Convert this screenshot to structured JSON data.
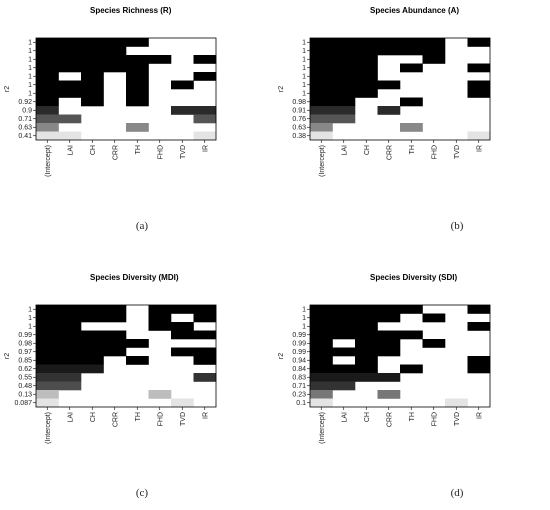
{
  "chart_data": [
    {
      "type": "heatmap",
      "title": "Species Richness (R)",
      "ylabel": "r2",
      "caption": "(a)",
      "columns": [
        "(Intercept)",
        "LAI",
        "CH",
        "CRR",
        "TH",
        "FHD",
        "TVD",
        "IR"
      ],
      "rows": [
        "1",
        "1",
        "1",
        "1",
        "1",
        "1",
        "1",
        "0.92",
        "0.9",
        "0.71",
        "0.63",
        "0.41"
      ],
      "row_shades": [
        "#000000",
        "#000000",
        "#000000",
        "#000000",
        "#000000",
        "#000000",
        "#000000",
        "#000000",
        "#2a2a2a",
        "#555555",
        "#888888",
        "#e4e4e4"
      ],
      "grid": [
        [
          1,
          1,
          1,
          1,
          1,
          0,
          0,
          0
        ],
        [
          1,
          1,
          1,
          1,
          0,
          0,
          0,
          0
        ],
        [
          1,
          1,
          1,
          1,
          1,
          1,
          0,
          1
        ],
        [
          1,
          1,
          1,
          1,
          1,
          0,
          0,
          0
        ],
        [
          1,
          0,
          1,
          0,
          1,
          0,
          0,
          1
        ],
        [
          1,
          1,
          1,
          0,
          1,
          0,
          1,
          0
        ],
        [
          1,
          1,
          1,
          0,
          1,
          0,
          0,
          0
        ],
        [
          1,
          0,
          1,
          0,
          1,
          0,
          0,
          0
        ],
        [
          1,
          0,
          0,
          0,
          0,
          0,
          1,
          1
        ],
        [
          1,
          1,
          0,
          0,
          0,
          0,
          0,
          1
        ],
        [
          1,
          0,
          0,
          0,
          1,
          0,
          0,
          0
        ],
        [
          1,
          1,
          0,
          0,
          0,
          0,
          0,
          1
        ]
      ]
    },
    {
      "type": "heatmap",
      "title": "Species Abundance (A)",
      "ylabel": "r2",
      "caption": "(b)",
      "columns": [
        "(Intercept)",
        "LAI",
        "CH",
        "CRR",
        "TH",
        "FHD",
        "TVD",
        "IR"
      ],
      "rows": [
        "1",
        "1",
        "1",
        "1",
        "1",
        "1",
        "1",
        "0.98",
        "0.91",
        "0.76",
        "0.63",
        "0.38"
      ],
      "row_shades": [
        "#000000",
        "#000000",
        "#000000",
        "#000000",
        "#000000",
        "#000000",
        "#000000",
        "#000000",
        "#2a2a2a",
        "#555555",
        "#888888",
        "#e4e4e4"
      ],
      "grid": [
        [
          1,
          1,
          1,
          1,
          1,
          1,
          0,
          1
        ],
        [
          1,
          1,
          1,
          1,
          1,
          1,
          0,
          0
        ],
        [
          1,
          1,
          1,
          0,
          0,
          1,
          0,
          0
        ],
        [
          1,
          1,
          1,
          0,
          1,
          0,
          0,
          1
        ],
        [
          1,
          1,
          1,
          0,
          0,
          0,
          0,
          0
        ],
        [
          1,
          1,
          1,
          1,
          0,
          0,
          0,
          1
        ],
        [
          1,
          1,
          1,
          0,
          0,
          0,
          0,
          1
        ],
        [
          1,
          1,
          0,
          0,
          1,
          0,
          0,
          0
        ],
        [
          1,
          1,
          0,
          1,
          0,
          0,
          0,
          0
        ],
        [
          1,
          1,
          0,
          0,
          0,
          0,
          0,
          0
        ],
        [
          1,
          0,
          0,
          0,
          1,
          0,
          0,
          0
        ],
        [
          1,
          0,
          0,
          0,
          0,
          0,
          0,
          1
        ]
      ]
    },
    {
      "type": "heatmap",
      "title": "Species Diversity (MDI)",
      "ylabel": "r2",
      "caption": "(c)",
      "columns": [
        "(Intercept)",
        "LAI",
        "CH",
        "CRR",
        "TH",
        "FHD",
        "TVD",
        "IR"
      ],
      "rows": [
        "1",
        "1",
        "1",
        "0.99",
        "0.98",
        "0.97",
        "0.85",
        "0.62",
        "0.55",
        "0.48",
        "0.13",
        "0.087"
      ],
      "row_shades": [
        "#000000",
        "#000000",
        "#000000",
        "#000000",
        "#000000",
        "#000000",
        "#000000",
        "#1a1a1a",
        "#333333",
        "#4d4d4d",
        "#bdbdbd",
        "#e4e4e4"
      ],
      "grid": [
        [
          1,
          1,
          1,
          1,
          0,
          1,
          1,
          1
        ],
        [
          1,
          1,
          1,
          1,
          0,
          1,
          0,
          1
        ],
        [
          1,
          1,
          0,
          0,
          0,
          1,
          1,
          0
        ],
        [
          1,
          1,
          1,
          1,
          0,
          0,
          1,
          1
        ],
        [
          1,
          1,
          1,
          1,
          1,
          0,
          0,
          0
        ],
        [
          1,
          1,
          1,
          1,
          0,
          0,
          1,
          1
        ],
        [
          1,
          1,
          1,
          0,
          1,
          0,
          0,
          1
        ],
        [
          1,
          1,
          1,
          0,
          0,
          0,
          0,
          0
        ],
        [
          1,
          1,
          0,
          0,
          0,
          0,
          0,
          1
        ],
        [
          1,
          1,
          0,
          0,
          0,
          0,
          0,
          0
        ],
        [
          1,
          0,
          0,
          0,
          0,
          1,
          0,
          0
        ],
        [
          1,
          0,
          0,
          0,
          0,
          0,
          1,
          0
        ]
      ]
    },
    {
      "type": "heatmap",
      "title": "Species Diversity (SDI)",
      "ylabel": "r2",
      "caption": "(d)",
      "columns": [
        "(Intercept)",
        "LAI",
        "CH",
        "CRR",
        "TH",
        "FHD",
        "TVD",
        "IR"
      ],
      "rows": [
        "1",
        "1",
        "1",
        "0.99",
        "0.99",
        "0.99",
        "0.94",
        "0.84",
        "0.83",
        "0.71",
        "0.23",
        "0.1"
      ],
      "row_shades": [
        "#000000",
        "#000000",
        "#000000",
        "#000000",
        "#000000",
        "#000000",
        "#000000",
        "#000000",
        "#1a1a1a",
        "#333333",
        "#777777",
        "#e4e4e4"
      ],
      "grid": [
        [
          1,
          1,
          1,
          1,
          1,
          0,
          0,
          1
        ],
        [
          1,
          1,
          1,
          1,
          0,
          1,
          0,
          0
        ],
        [
          1,
          1,
          1,
          0,
          0,
          0,
          0,
          1
        ],
        [
          1,
          1,
          1,
          1,
          1,
          0,
          0,
          0
        ],
        [
          1,
          0,
          1,
          1,
          0,
          1,
          0,
          0
        ],
        [
          1,
          1,
          1,
          1,
          0,
          0,
          0,
          0
        ],
        [
          1,
          0,
          1,
          0,
          0,
          0,
          0,
          1
        ],
        [
          1,
          1,
          1,
          0,
          1,
          0,
          0,
          1
        ],
        [
          1,
          1,
          1,
          1,
          0,
          0,
          0,
          0
        ],
        [
          1,
          1,
          0,
          0,
          0,
          0,
          0,
          0
        ],
        [
          1,
          0,
          0,
          1,
          0,
          0,
          0,
          0
        ],
        [
          1,
          0,
          0,
          0,
          0,
          0,
          1,
          0
        ]
      ]
    }
  ]
}
